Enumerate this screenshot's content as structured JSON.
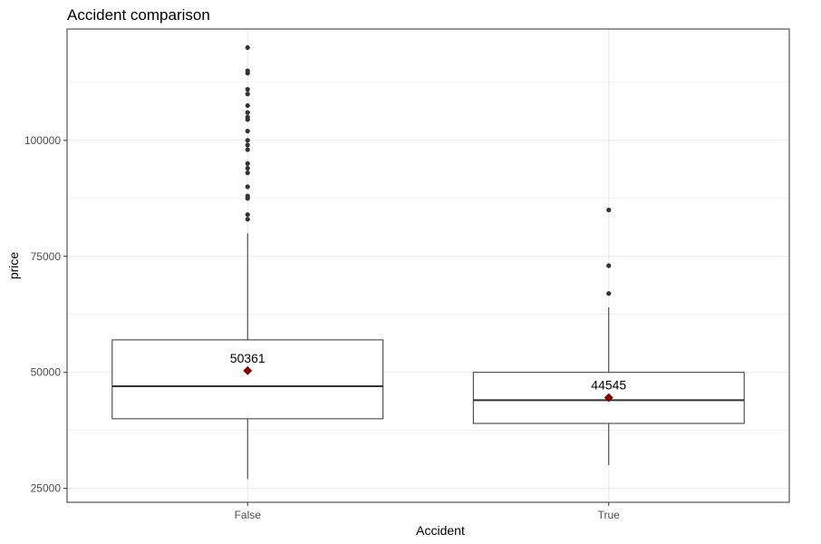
{
  "chart_data": {
    "type": "boxplot",
    "title": "Accident comparison",
    "xlabel": "Accident",
    "ylabel": "price",
    "categories": [
      "False",
      "True"
    ],
    "ylim": [
      22000,
      124000
    ],
    "yticks": [
      25000,
      50000,
      75000,
      100000
    ],
    "grid": true,
    "boxes": [
      {
        "category": "False",
        "whisker_low": 27000,
        "q1": 40000,
        "median": 47000,
        "q3": 57000,
        "whisker_high": 80000,
        "mean": 50361,
        "mean_label": "50361",
        "outliers": [
          83000,
          84000,
          87500,
          88000,
          90000,
          93000,
          94000,
          95000,
          98000,
          99000,
          100000,
          102000,
          104500,
          105000,
          106000,
          107500,
          110000,
          111000,
          114500,
          115000,
          120000
        ]
      },
      {
        "category": "True",
        "whisker_low": 30000,
        "q1": 39000,
        "median": 44000,
        "q3": 50000,
        "whisker_high": 64000,
        "mean": 44545,
        "mean_label": "44545",
        "outliers": [
          67000,
          73000,
          85000
        ]
      }
    ],
    "colors": {
      "box_fill": "#ffffff",
      "box_line": "#333333",
      "outlier": "#333333",
      "mean_marker": "#8b0000",
      "grid": "#ebebeb",
      "panel_border": "#333333"
    }
  }
}
